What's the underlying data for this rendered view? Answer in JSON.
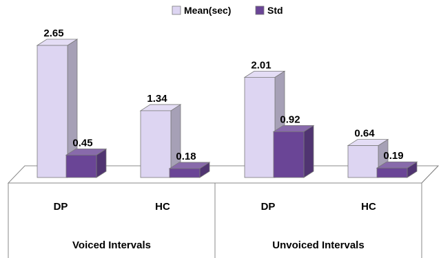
{
  "chart_data": {
    "type": "bar",
    "legend": "top",
    "groups": [
      {
        "label": "Voiced Intervals",
        "categories": [
          "DP",
          "HC"
        ]
      },
      {
        "label": "Unvoiced Intervals",
        "categories": [
          "DP",
          "HC"
        ]
      }
    ],
    "categories": [
      "DP",
      "HC",
      "DP",
      "HC"
    ],
    "series": [
      {
        "name": "Mean(sec)",
        "values": [
          2.65,
          1.34,
          2.01,
          0.64
        ],
        "labels": [
          "2.65",
          "1.34",
          "2.01",
          "0.64"
        ],
        "color": "#ddd5f2"
      },
      {
        "name": "Std",
        "values": [
          0.45,
          0.18,
          0.92,
          0.19
        ],
        "labels": [
          "0.45",
          "0.18",
          "0.92",
          "0.19"
        ],
        "color": "#6a4596"
      }
    ],
    "ylim": [
      0,
      2.65
    ],
    "grid": false
  }
}
